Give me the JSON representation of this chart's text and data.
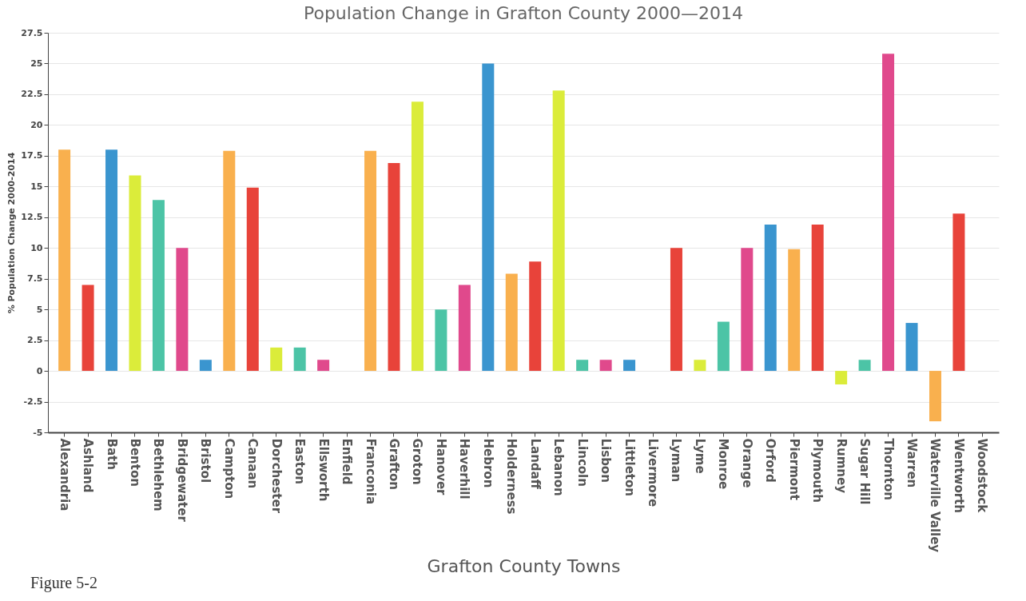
{
  "chart_data": {
    "type": "bar",
    "title": "Population Change in Grafton County 2000—2014",
    "xlabel": "Grafton County Towns",
    "ylabel": "% Population Change 2000-2014",
    "annotations": [
      "Figure 5-2"
    ],
    "categories": [
      "Alexandria",
      "Ashland",
      "Bath",
      "Benton",
      "Bethlehem",
      "Bridgewater",
      "Bristol",
      "Campton",
      "Canaan",
      "Dorchester",
      "Easton",
      "Ellsworth",
      "Enfield",
      "Franconia",
      "Grafton",
      "Groton",
      "Hanover",
      "Haverhill",
      "Hebron",
      "Holderness",
      "Landaff",
      "Lebanon",
      "Lincoln",
      "Lisbon",
      "Littleton",
      "Livermore",
      "Lyman",
      "Lyme",
      "Monroe",
      "Orange",
      "Orford",
      "Piermont",
      "Plymouth",
      "Rumney",
      "Sugar Hill",
      "Thornton",
      "Warren",
      "Waterville Valley",
      "Wentworth",
      "Woodstock"
    ],
    "values": [
      18,
      7,
      18,
      15.9,
      13.9,
      10,
      0.9,
      17.9,
      14.9,
      1.9,
      1.9,
      0.9,
      null,
      17.9,
      16.9,
      21.9,
      5,
      7,
      25,
      7.9,
      8.9,
      22.8,
      0.9,
      0.9,
      0.9,
      null,
      10,
      0.9,
      4,
      10,
      11.9,
      9.9,
      11.9,
      -1.1,
      0.9,
      25.8,
      3.9,
      -4.1,
      12.8,
      null
    ],
    "colors": [
      "#f9b04e",
      "#e8433a",
      "#3a95cf",
      "#dbec3a",
      "#4cc4a6",
      "#e0498c",
      "#3a95cf",
      "#f9b04e",
      "#e8433a",
      "#dbec3a",
      "#4cc4a6",
      "#e0498c",
      null,
      "#f9b04e",
      "#e8433a",
      "#dbec3a",
      "#4cc4a6",
      "#e0498c",
      "#3a95cf",
      "#f9b04e",
      "#e8433a",
      "#dbec3a",
      "#4cc4a6",
      "#e0498c",
      "#3a95cf",
      null,
      "#e8433a",
      "#dbec3a",
      "#4cc4a6",
      "#e0498c",
      "#3a95cf",
      "#f9b04e",
      "#e8433a",
      "#dbec3a",
      "#4cc4a6",
      "#e0498c",
      "#3a95cf",
      "#f9b04e",
      "#e8433a",
      null
    ],
    "ylim": [
      -5,
      27.5
    ],
    "yticks": [
      -5,
      -2.5,
      0,
      2.5,
      5,
      7.5,
      10,
      12.5,
      15,
      17.5,
      20,
      22.5,
      25,
      27.5
    ],
    "grid": "y"
  }
}
